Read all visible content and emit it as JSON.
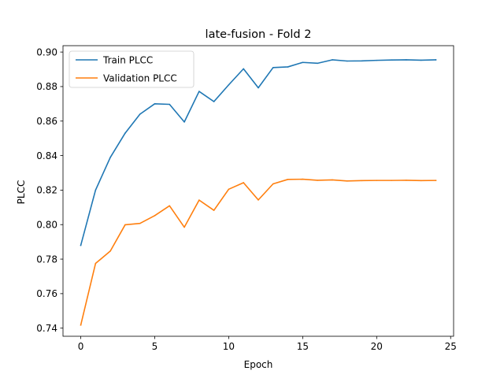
{
  "chart_data": {
    "type": "line",
    "title": "late-fusion - Fold 2",
    "xlabel": "Epoch",
    "ylabel": "PLCC",
    "xlim": [
      -1.2,
      25.2
    ],
    "ylim": [
      0.7353,
      0.9037
    ],
    "xticks": [
      0,
      5,
      10,
      15,
      20,
      25
    ],
    "yticks": [
      0.74,
      0.76,
      0.78,
      0.8,
      0.82,
      0.84,
      0.86,
      0.88,
      0.9
    ],
    "xtick_labels": [
      "0",
      "5",
      "10",
      "15",
      "20",
      "25"
    ],
    "ytick_labels": [
      "0.74",
      "0.76",
      "0.78",
      "0.80",
      "0.82",
      "0.84",
      "0.86",
      "0.88",
      "0.90"
    ],
    "grid": false,
    "legend_position": "top-left",
    "x": [
      0,
      1,
      2,
      3,
      4,
      5,
      6,
      7,
      8,
      9,
      10,
      11,
      12,
      13,
      14,
      15,
      16,
      17,
      18,
      19,
      20,
      21,
      22,
      23,
      24
    ],
    "series": [
      {
        "name": "Train PLCC",
        "color": "#1f77b4",
        "values": [
          0.788,
          0.82,
          0.839,
          0.853,
          0.864,
          0.87,
          0.8697,
          0.8595,
          0.8772,
          0.8713,
          0.881,
          0.8903,
          0.8793,
          0.891,
          0.8914,
          0.894,
          0.8935,
          0.8955,
          0.8948,
          0.8949,
          0.8952,
          0.8954,
          0.8955,
          0.8953,
          0.8955
        ]
      },
      {
        "name": "Validation PLCC",
        "color": "#ff7f0e",
        "values": [
          0.7418,
          0.7775,
          0.7847,
          0.7999,
          0.8007,
          0.8052,
          0.8109,
          0.7985,
          0.8142,
          0.8083,
          0.8205,
          0.8243,
          0.8143,
          0.8236,
          0.8262,
          0.8263,
          0.8257,
          0.8259,
          0.8253,
          0.8255,
          0.8256,
          0.8256,
          0.8257,
          0.8255,
          0.8256
        ]
      }
    ]
  }
}
